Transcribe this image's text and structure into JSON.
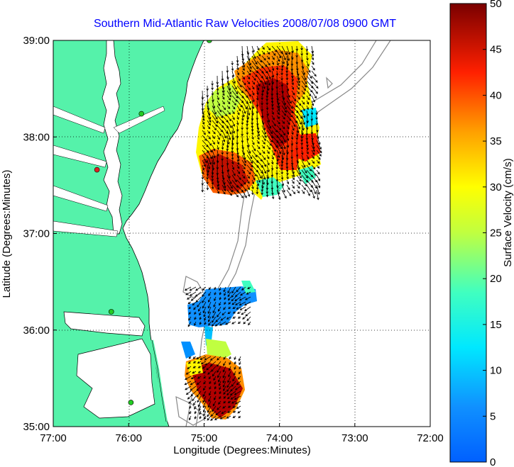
{
  "title": "Southern Mid-Atlantic Raw Velocities 2008/07/08 0900 GMT",
  "xlabel": "Longitude (Degrees:Minutes)",
  "ylabel": "Latitude (Degrees:Minutes)",
  "map": {
    "lon_range": [
      -77,
      -72
    ],
    "lat_range": [
      35,
      39
    ],
    "x_ticks": [
      {
        "value": -77,
        "label": "77:00"
      },
      {
        "value": -76,
        "label": "76:00"
      },
      {
        "value": -75,
        "label": "75:00"
      },
      {
        "value": -74,
        "label": "74:00"
      },
      {
        "value": -73,
        "label": "73:00"
      },
      {
        "value": -72,
        "label": "72:00"
      }
    ],
    "y_ticks": [
      {
        "value": 39,
        "label": "39:00"
      },
      {
        "value": 38,
        "label": "38:00"
      },
      {
        "value": 37,
        "label": "37:00"
      },
      {
        "value": 36,
        "label": "36:00"
      },
      {
        "value": 35,
        "label": "35:00"
      }
    ],
    "grid": "dotted",
    "land_color": "#55f2aa",
    "radar_stations": [
      {
        "lon": -74.93,
        "lat": 39.0,
        "color": "#22cc22"
      },
      {
        "lon": -75.83,
        "lat": 38.24,
        "color": "#22cc22"
      },
      {
        "lon": -76.42,
        "lat": 37.66,
        "color": "#dd2222"
      },
      {
        "lon": -76.23,
        "lat": 36.19,
        "color": "#22cc22"
      },
      {
        "lon": -75.97,
        "lat": 35.25,
        "color": "#22cc22"
      }
    ]
  },
  "colorbar": {
    "label": "Surface Velocity (cm/s)",
    "min": 0,
    "max": 50,
    "ticks": [
      "0",
      "5",
      "10",
      "15",
      "20",
      "25",
      "30",
      "35",
      "40",
      "45",
      "50"
    ]
  }
}
